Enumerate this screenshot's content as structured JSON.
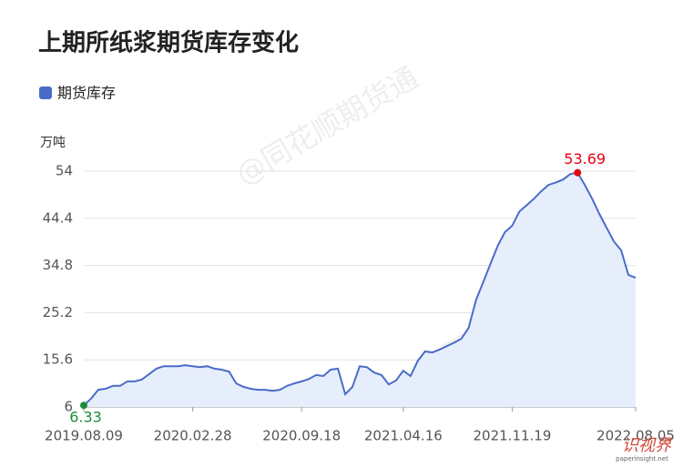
{
  "chart_data": {
    "type": "line",
    "title": "上期所纸浆期货库存变化",
    "y_unit": "万吨",
    "watermark": "@同花顺期货通",
    "logo": {
      "text": "识视界",
      "url": "paperinsight.net"
    },
    "categories": [
      "2019.08.09",
      null,
      null,
      null,
      null,
      null,
      null,
      null,
      null,
      null,
      null,
      null,
      null,
      null,
      null,
      "2020.02.28",
      null,
      null,
      null,
      null,
      null,
      null,
      null,
      null,
      null,
      null,
      null,
      null,
      null,
      null,
      "2020.09.18",
      null,
      null,
      null,
      null,
      null,
      null,
      null,
      null,
      null,
      null,
      null,
      null,
      null,
      "2021.04.16",
      null,
      null,
      null,
      null,
      null,
      null,
      null,
      null,
      null,
      null,
      null,
      null,
      null,
      null,
      "2021.11.19",
      null,
      null,
      null,
      null,
      null,
      null,
      null,
      null,
      null,
      null,
      null,
      null,
      null,
      null,
      null,
      null,
      "2022.08.05"
    ],
    "series": [
      {
        "name": "期货库存",
        "color": "#4a6cc8",
        "fill": "#e6eefb",
        "values": [
          6.33,
          7.7,
          9.5,
          9.7,
          10.3,
          10.3,
          11.2,
          11.2,
          11.6,
          12.7,
          13.8,
          14.3,
          14.3,
          14.3,
          14.5,
          14.3,
          14.1,
          14.3,
          13.8,
          13.6,
          13.2,
          10.8,
          10.1,
          9.7,
          9.5,
          9.5,
          9.3,
          9.5,
          10.3,
          10.8,
          11.2,
          11.7,
          12.5,
          12.3,
          13.6,
          13.8,
          8.6,
          10.1,
          14.3,
          14.1,
          13.0,
          12.5,
          10.6,
          11.4,
          13.4,
          12.3,
          15.4,
          17.3,
          17.1,
          17.7,
          18.4,
          19.1,
          19.9,
          22.1,
          27.7,
          31.4,
          35.1,
          38.8,
          41.6,
          42.9,
          45.8,
          47.1,
          48.4,
          49.9,
          51.2,
          51.7,
          52.3,
          53.4,
          53.69,
          51.2,
          48.4,
          45.3,
          42.5,
          39.7,
          37.9,
          32.9,
          32.3
        ]
      }
    ],
    "min_color": "#1b8a3c",
    "max_color": "#e60012",
    "ylim": [
      6,
      54
    ],
    "yticks": [
      6,
      15.6,
      25.2,
      34.8,
      44.4,
      54
    ],
    "grid": true
  }
}
